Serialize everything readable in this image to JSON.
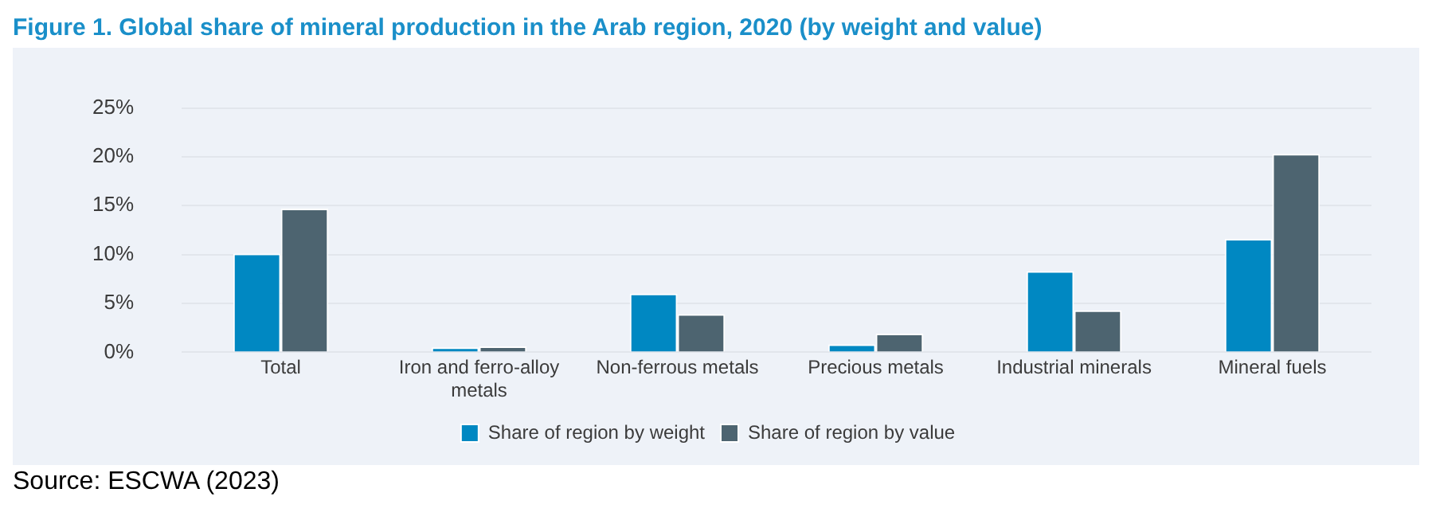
{
  "chart_data": {
    "type": "bar",
    "title": "Figure 1. Global share of mineral production in the Arab region, 2020 (by weight and value)",
    "categories": [
      "Total",
      "Iron and ferro-alloy metals",
      "Non-ferrous metals",
      "Precious metals",
      "Industrial minerals",
      "Mineral fuels"
    ],
    "series": [
      {
        "name": "Share of region by weight",
        "color": "#0088c2",
        "values": [
          10.1,
          0.5,
          6.0,
          0.8,
          8.3,
          11.6
        ]
      },
      {
        "name": "Share of region by value",
        "color": "#4d6470",
        "values": [
          14.7,
          0.6,
          3.9,
          1.9,
          4.3,
          20.3
        ]
      }
    ],
    "ylim": [
      0,
      25
    ],
    "yticks": [
      {
        "value": 0,
        "label": "0%"
      },
      {
        "value": 5,
        "label": "5%"
      },
      {
        "value": 10,
        "label": "10%"
      },
      {
        "value": 15,
        "label": "15%"
      },
      {
        "value": 20,
        "label": "20%"
      },
      {
        "value": 25,
        "label": "25%"
      }
    ],
    "grid": "y",
    "legend": "bottom",
    "annotations": [
      "Source: ESCWA (2023)"
    ]
  }
}
